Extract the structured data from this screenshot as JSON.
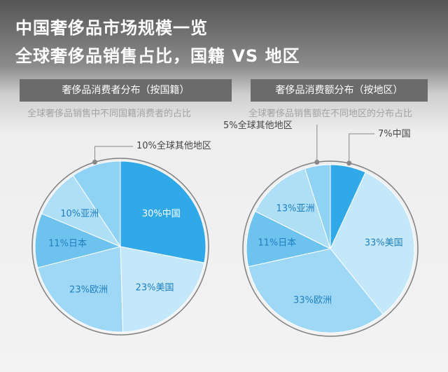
{
  "title_line1": "中国奢侈品市场规模一览",
  "title_line2": "全球奢侈品销售占比，国籍 VS 地区",
  "colors": {
    "china": "#31a9e8",
    "usa": "#c4e8fa",
    "europe": "#9fd8f5",
    "japan": "#6ec2ee",
    "asia": "#aedff7",
    "other": "#8fd2f3",
    "label_text": "#1e7fc0",
    "outline": "#7f7f7f"
  },
  "chart_data": [
    {
      "type": "pie",
      "title": "奢侈品消费者分布（按国籍）",
      "subtitle": "全球奢侈品销售中不同国籍消费者的占比",
      "slices": [
        {
          "key": "china",
          "label": "30%中国",
          "value": 30
        },
        {
          "key": "usa",
          "label": "23%美国",
          "value": 23
        },
        {
          "key": "europe",
          "label": "23%欧洲",
          "value": 23
        },
        {
          "key": "japan",
          "label": "11%日本",
          "value": 11
        },
        {
          "key": "asia",
          "label": "10%亚洲",
          "value": 10
        },
        {
          "key": "other",
          "label": "10%全球其他地区",
          "value": 10
        }
      ]
    },
    {
      "type": "pie",
      "title": "奢侈品消费额分布（按地区）",
      "subtitle": "全球奢侈品销售额在不同地区的分布占比",
      "slices": [
        {
          "key": "china",
          "label": "7%中国",
          "value": 7
        },
        {
          "key": "usa",
          "label": "33%美国",
          "value": 33
        },
        {
          "key": "europe",
          "label": "33%欧洲",
          "value": 33
        },
        {
          "key": "japan",
          "label": "11%日本",
          "value": 11
        },
        {
          "key": "asia",
          "label": "13%亚洲",
          "value": 13
        },
        {
          "key": "other",
          "label": "5%全球其他地区",
          "value": 5
        }
      ]
    }
  ]
}
